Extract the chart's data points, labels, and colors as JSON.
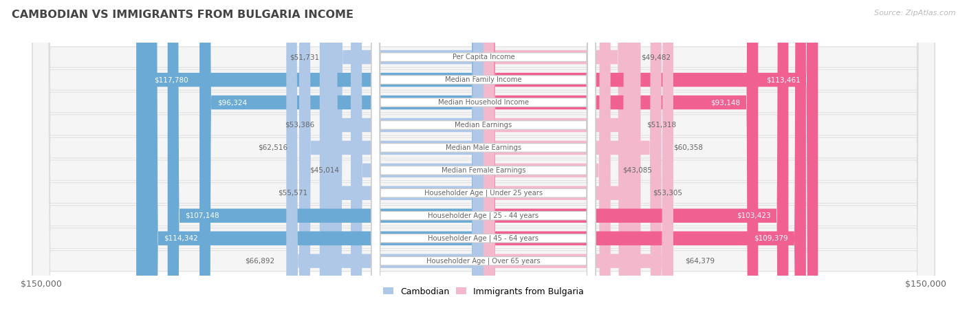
{
  "title": "CAMBODIAN VS IMMIGRANTS FROM BULGARIA INCOME",
  "source": "Source: ZipAtlas.com",
  "max_val": 150000,
  "categories": [
    "Per Capita Income",
    "Median Family Income",
    "Median Household Income",
    "Median Earnings",
    "Median Male Earnings",
    "Median Female Earnings",
    "Householder Age | Under 25 years",
    "Householder Age | 25 - 44 years",
    "Householder Age | 45 - 64 years",
    "Householder Age | Over 65 years"
  ],
  "cambodian_values": [
    51731,
    117780,
    96324,
    53386,
    62516,
    45014,
    55571,
    107148,
    114342,
    66892
  ],
  "bulgaria_values": [
    49482,
    113461,
    93148,
    51318,
    60358,
    43085,
    53305,
    103423,
    109379,
    64379
  ],
  "cam_color_light": "#afc8e8",
  "cam_color_dark": "#6aaad4",
  "bul_color_light": "#f4b8cc",
  "bul_color_dark": "#f06090",
  "row_bg_color": "#f5f5f5",
  "row_edge_color": "#dedede",
  "label_box_color": "#ffffff",
  "label_box_edge": "#cccccc",
  "text_dark": "#666666",
  "text_white": "#ffffff",
  "title_color": "#444444",
  "source_color": "#bbbbbb",
  "threshold": 80000
}
